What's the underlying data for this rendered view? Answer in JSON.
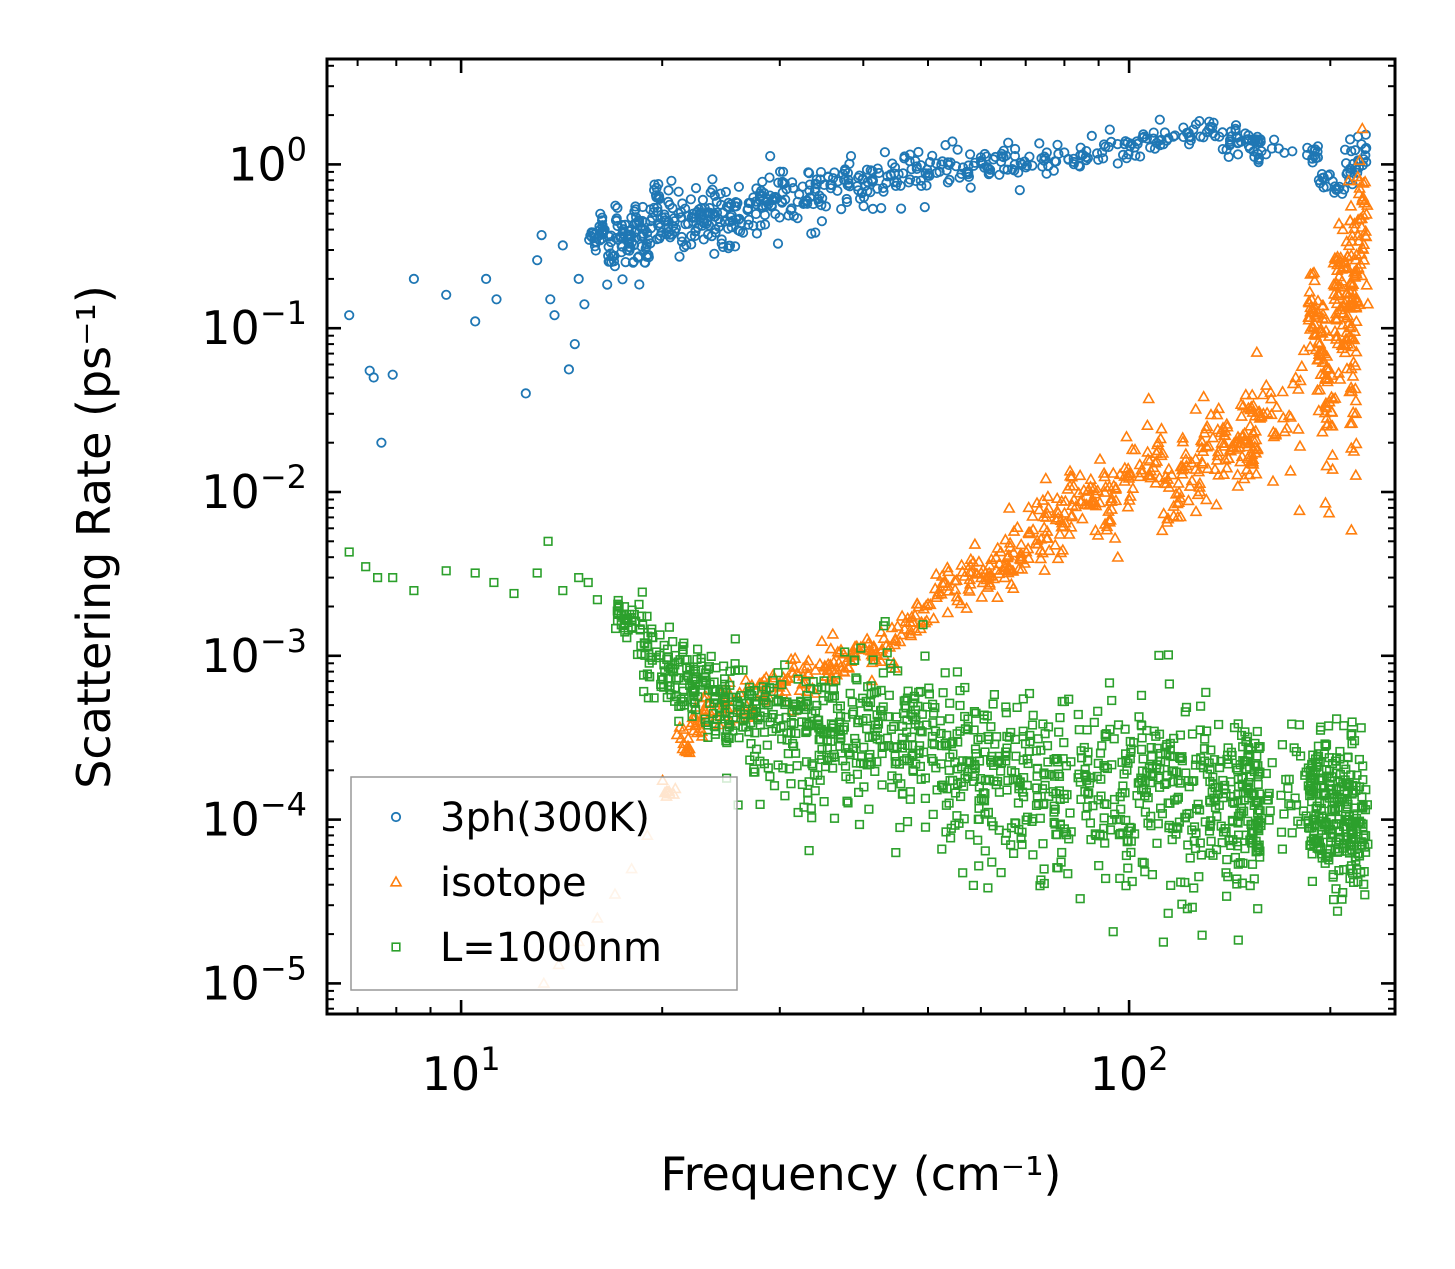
{
  "chart_data": {
    "type": "scatter",
    "title": "",
    "xlabel": "Frequency (cm⁻¹)",
    "ylabel": "Scattering Rate (ps⁻¹)",
    "xscale": "log",
    "yscale": "log",
    "xlim": [
      6.3,
      250
    ],
    "ylim": [
      6.5e-06,
      4.4
    ],
    "legend_position": "lower-left",
    "x_ticks": [
      {
        "value": 10,
        "base": "10",
        "exp": "1"
      },
      {
        "value": 100,
        "base": "10",
        "exp": "2"
      }
    ],
    "y_ticks": [
      {
        "value": 1,
        "base": "10",
        "exp": "0"
      },
      {
        "value": 0.1,
        "base": "10",
        "exp": "−1"
      },
      {
        "value": 0.01,
        "base": "10",
        "exp": "−2"
      },
      {
        "value": 0.001,
        "base": "10",
        "exp": "−3"
      },
      {
        "value": 0.0001,
        "base": "10",
        "exp": "−4"
      },
      {
        "value": 1e-05,
        "base": "10",
        "exp": "−5"
      }
    ],
    "series": [
      {
        "name": "3ph(300K)",
        "marker": "circle",
        "color": "#1f77b4",
        "x": [
          6.8,
          7.3,
          7.4,
          7.6,
          7.9,
          8.5,
          9.5,
          10.5,
          10.9,
          11.3,
          12.5,
          13.0,
          13.2,
          13.6,
          13.8,
          14.2,
          14.5,
          14.8,
          15.0,
          15.3,
          15.5,
          16.0,
          16.5,
          17.0,
          17.5,
          18.0,
          18.6,
          19.2,
          19.8,
          20.5,
          21.5,
          22.5,
          23.5,
          24.5,
          25.5,
          27.0,
          28.5,
          30.0,
          32.0,
          34.0,
          36.0,
          38.5,
          41.0,
          44.0,
          47.0,
          50.0,
          54.0,
          58.0,
          62.0,
          67.0,
          72.0,
          78.0,
          85.0,
          92.0,
          100.0,
          108.0,
          116.0,
          125.0,
          134.0,
          143.0,
          150.0,
          155.0,
          158.0,
          188.0,
          192.0,
          200.0,
          210.0,
          218.0
        ],
        "y": [
          0.12,
          0.055,
          0.05,
          0.02,
          0.052,
          0.2,
          0.16,
          0.11,
          0.2,
          0.15,
          0.04,
          0.26,
          0.37,
          0.15,
          0.12,
          0.32,
          0.056,
          0.08,
          0.2,
          0.14,
          0.36,
          0.48,
          0.3,
          0.55,
          0.42,
          0.6,
          0.38,
          0.95,
          0.5,
          0.55,
          0.6,
          0.5,
          0.65,
          0.55,
          0.6,
          0.7,
          0.62,
          0.75,
          0.72,
          0.68,
          0.8,
          0.75,
          0.85,
          0.82,
          0.9,
          1.0,
          0.95,
          1.05,
          1.0,
          1.1,
          1.0,
          1.05,
          1.05,
          1.1,
          1.3,
          1.4,
          1.6,
          1.8,
          1.7,
          1.6,
          1.5,
          1.4,
          1.3,
          1.2,
          0.85,
          0.7,
          0.8,
          1.0
        ],
        "band_lo": [
          0.12,
          0.055,
          0.05,
          0.02,
          0.052,
          0.2,
          0.16,
          0.11,
          0.2,
          0.15,
          0.04,
          0.26,
          0.37,
          0.15,
          0.12,
          0.32,
          0.056,
          0.08,
          0.2,
          0.14,
          0.22,
          0.2,
          0.16,
          0.15,
          0.15,
          0.14,
          0.14,
          0.22,
          0.22,
          0.2,
          0.2,
          0.18,
          0.18,
          0.2,
          0.22,
          0.24,
          0.26,
          0.28,
          0.3,
          0.34,
          0.36,
          0.4,
          0.42,
          0.45,
          0.5,
          0.55,
          0.55,
          0.6,
          0.65,
          0.6,
          0.7,
          0.75,
          0.8,
          0.85,
          0.9,
          1.0,
          1.1,
          1.1,
          1.0,
          1.0,
          0.95,
          0.9,
          1.0,
          0.9,
          0.65,
          0.55,
          0.65,
          0.7
        ],
        "band_hi": [
          0.12,
          0.055,
          0.05,
          0.02,
          0.052,
          0.2,
          0.16,
          0.11,
          0.2,
          0.15,
          0.04,
          0.26,
          0.37,
          0.15,
          0.12,
          0.32,
          0.056,
          0.08,
          0.2,
          0.14,
          0.5,
          0.65,
          0.5,
          0.7,
          0.65,
          0.8,
          0.9,
          1.0,
          0.9,
          1.0,
          0.95,
          1.1,
          1.05,
          1.1,
          1.1,
          1.2,
          1.3,
          1.35,
          1.4,
          1.45,
          1.6,
          1.5,
          1.55,
          1.6,
          1.55,
          1.7,
          1.6,
          1.7,
          1.5,
          1.4,
          1.5,
          1.6,
          1.7,
          1.8,
          2.0,
          2.1,
          2.2,
          2.2,
          2.1,
          2.0,
          1.9,
          1.8,
          1.5,
          1.4,
          1.0,
          0.85,
          1.5,
          2.0
        ]
      },
      {
        "name": "isotope",
        "marker": "triangle",
        "color": "#ff7f0e",
        "x": [
          13.3,
          14.0,
          15.0,
          16.0,
          17.0,
          18.0,
          19.0,
          20.0,
          21.0,
          22.0,
          23.0,
          24.5,
          26.0,
          28.0,
          30.0,
          32.0,
          34.0,
          36.0,
          38.0,
          40.0,
          42.0,
          45.0,
          48.0,
          51.0,
          54.0,
          58.0,
          62.0,
          66.0,
          70.0,
          75.0,
          80.0,
          86.0,
          92.0,
          98.0,
          105.0,
          112.0,
          120.0,
          128.0,
          136.0,
          145.0,
          152.0,
          157.0,
          185.0,
          190.0,
          196.0,
          202.0,
          208.0,
          214.0,
          219.0
        ],
        "y": [
          1e-05,
          1.3e-05,
          1.8e-05,
          2.5e-05,
          3.5e-05,
          5e-05,
          8e-05,
          0.00015,
          0.0003,
          0.0004,
          0.00045,
          0.0005,
          0.0005,
          0.0006,
          0.0007,
          0.00075,
          0.0008,
          0.0009,
          0.001,
          0.0011,
          0.0012,
          0.0014,
          0.0018,
          0.0025,
          0.003,
          0.003,
          0.0035,
          0.004,
          0.005,
          0.006,
          0.008,
          0.01,
          0.008,
          0.012,
          0.015,
          0.01,
          0.014,
          0.018,
          0.02,
          0.025,
          0.03,
          0.05,
          0.25,
          0.15,
          0.1,
          0.3,
          0.2,
          0.6,
          1.0
        ],
        "band_lo": [
          1e-05,
          1.3e-05,
          1.8e-05,
          2.5e-05,
          3.5e-05,
          5e-05,
          8e-05,
          0.00012,
          0.00018,
          0.00025,
          0.0003,
          0.00032,
          0.00035,
          0.00038,
          0.0004,
          0.00045,
          0.0005,
          0.00055,
          0.0006,
          0.00065,
          0.0007,
          0.0008,
          0.0012,
          0.0015,
          0.0015,
          0.0012,
          0.0016,
          0.0015,
          0.002,
          0.002,
          0.003,
          0.004,
          0.003,
          0.005,
          0.006,
          0.003,
          0.005,
          0.006,
          0.007,
          0.004,
          0.006,
          0.005,
          0.04,
          0.015,
          0.005,
          0.02,
          0.01,
          0.003,
          0.05
        ],
        "band_hi": [
          1e-05,
          1.3e-05,
          1.8e-05,
          2.5e-05,
          3.5e-05,
          5e-05,
          8e-05,
          0.00018,
          0.00045,
          0.0006,
          0.0007,
          0.0008,
          0.0009,
          0.001,
          0.0012,
          0.0013,
          0.0015,
          0.0016,
          0.0017,
          0.0018,
          0.002,
          0.0025,
          0.003,
          0.005,
          0.006,
          0.007,
          0.009,
          0.012,
          0.015,
          0.02,
          0.025,
          0.03,
          0.02,
          0.03,
          0.04,
          0.03,
          0.04,
          0.05,
          0.06,
          0.08,
          0.1,
          0.12,
          0.35,
          0.3,
          0.2,
          0.8,
          0.9,
          1.5,
          2.3
        ]
      },
      {
        "name": "L=1000nm",
        "marker": "square",
        "color": "#2ca02c",
        "x": [
          6.8,
          7.2,
          7.5,
          7.9,
          8.5,
          9.5,
          10.5,
          11.2,
          12.0,
          13.0,
          13.5,
          14.2,
          15.0,
          15.5,
          16.0,
          17.0,
          17.5,
          18.0,
          19.0,
          20.0,
          21.0,
          22.0,
          23.0,
          24.0,
          25.0,
          26.5,
          28.0,
          30.0,
          32.0,
          34.0,
          36.0,
          38.5,
          41.0,
          44.0,
          47.0,
          50.0,
          54.0,
          58.0,
          62.0,
          67.0,
          72.0,
          78.0,
          85.0,
          92.0,
          100.0,
          108.0,
          116.0,
          125.0,
          134.0,
          143.0,
          150.0,
          155.0,
          158.0,
          185.0,
          190.0,
          196.0,
          202.0,
          208.0,
          214.0,
          219.0
        ],
        "y": [
          0.0043,
          0.0035,
          0.003,
          0.003,
          0.0025,
          0.0033,
          0.0032,
          0.0028,
          0.0024,
          0.0032,
          0.005,
          0.0025,
          0.003,
          0.0028,
          0.0022,
          0.002,
          0.0018,
          0.0015,
          0.0012,
          0.001,
          0.0008,
          0.0009,
          0.0008,
          0.0007,
          0.0007,
          0.0008,
          0.0007,
          0.0007,
          0.0008,
          0.0007,
          0.0006,
          0.0006,
          0.0006,
          0.0005,
          0.0005,
          0.0005,
          0.00045,
          0.0004,
          0.0004,
          0.00035,
          0.0003,
          0.00035,
          0.0003,
          0.00025,
          0.0003,
          0.00025,
          0.00025,
          0.0002,
          0.0002,
          0.0002,
          0.00018,
          0.00015,
          0.00012,
          0.0002,
          0.00015,
          0.0002,
          0.00015,
          0.00012,
          0.0001,
          0.0001
        ],
        "band_lo": [
          0.0043,
          0.0035,
          0.003,
          0.003,
          0.0025,
          0.0033,
          0.0032,
          0.0028,
          0.0024,
          0.0032,
          0.005,
          0.0025,
          0.003,
          0.0028,
          0.0022,
          0.0012,
          0.0008,
          0.0005,
          0.0003,
          0.00025,
          0.0002,
          0.00018,
          0.00015,
          0.00012,
          0.0001,
          8e-05,
          6e-05,
          5e-05,
          4e-05,
          4e-05,
          5e-05,
          4e-05,
          5e-05,
          4e-05,
          4e-05,
          3e-05,
          2.5e-05,
          2e-05,
          2e-05,
          1.8e-05,
          1.5e-05,
          1.5e-05,
          1.5e-05,
          1.2e-05,
          1.2e-05,
          1.5e-05,
          1.2e-05,
          1.2e-05,
          1.5e-05,
          1e-05,
          1.5e-05,
          2e-05,
          3e-05,
          1.2e-05,
          1.2e-05,
          1e-05,
          1e-05,
          1.2e-05,
          1.2e-05,
          1.5e-05
        ],
        "band_hi": [
          0.0043,
          0.0035,
          0.003,
          0.003,
          0.0025,
          0.0033,
          0.0032,
          0.0028,
          0.0024,
          0.0032,
          0.005,
          0.0025,
          0.003,
          0.0028,
          0.0022,
          0.0025,
          0.0028,
          0.003,
          0.0028,
          0.0025,
          0.0022,
          0.002,
          0.002,
          0.0018,
          0.0018,
          0.0016,
          0.0015,
          0.0015,
          0.0016,
          0.0018,
          0.0018,
          0.0025,
          0.0024,
          0.0022,
          0.002,
          0.0018,
          0.0017,
          0.0015,
          0.0015,
          0.0014,
          0.0013,
          0.0012,
          0.0012,
          0.0012,
          0.0013,
          0.0015,
          0.0013,
          0.0012,
          0.0011,
          0.0012,
          0.001,
          0.0009,
          0.0008,
          0.001,
          0.0009,
          0.0008,
          0.0009,
          0.0008,
          0.0007,
          0.0006
        ]
      }
    ]
  }
}
